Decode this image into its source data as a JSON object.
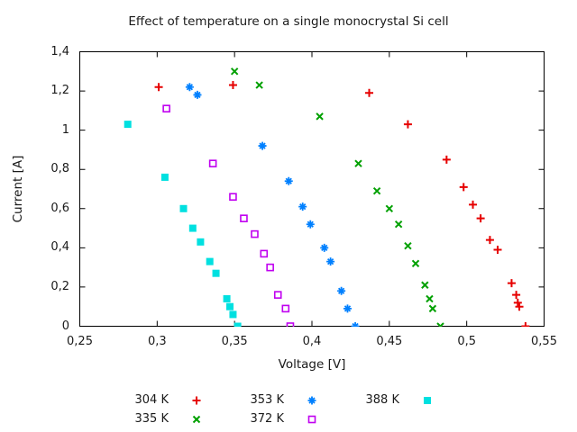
{
  "chart_data": {
    "type": "scatter",
    "title": "Effect of temperature on a single monocrystal Si cell",
    "xlabel": "Voltage [V]",
    "ylabel": "Current [A]",
    "xlim": [
      0.25,
      0.55
    ],
    "ylim": [
      0,
      1.4
    ],
    "grid": false,
    "decimal_separator": ",",
    "legend_position": "below plot, centered, 3 columns x 2 rows",
    "axis_color": "#000000",
    "text_color": "#1a1a1a",
    "x_ticks": {
      "values": [
        0.25,
        0.3,
        0.35,
        0.4,
        0.45,
        0.5,
        0.55
      ],
      "labels": [
        "0,25",
        "0,3",
        "0,35",
        "0,4",
        "0,45",
        "0,5",
        "0,55"
      ]
    },
    "y_ticks": {
      "values": [
        0,
        0.2,
        0.4,
        0.6,
        0.8,
        1.0,
        1.2,
        1.4
      ],
      "labels": [
        "0",
        "0,2",
        "0,4",
        "0,6",
        "0,8",
        "1",
        "1,2",
        "1,4"
      ]
    },
    "series": [
      {
        "name": "304 K",
        "marker": "plus",
        "color": "#e60000",
        "points": [
          [
            0.301,
            1.22
          ],
          [
            0.349,
            1.23
          ],
          [
            0.437,
            1.19
          ],
          [
            0.462,
            1.03
          ],
          [
            0.487,
            0.85
          ],
          [
            0.498,
            0.71
          ],
          [
            0.504,
            0.62
          ],
          [
            0.509,
            0.55
          ],
          [
            0.515,
            0.44
          ],
          [
            0.52,
            0.39
          ],
          [
            0.529,
            0.22
          ],
          [
            0.532,
            0.16
          ],
          [
            0.533,
            0.12
          ],
          [
            0.534,
            0.1
          ],
          [
            0.538,
            0.0
          ]
        ]
      },
      {
        "name": "335 K",
        "marker": "cross",
        "color": "#00a000",
        "points": [
          [
            0.35,
            1.3
          ],
          [
            0.366,
            1.23
          ],
          [
            0.405,
            1.07
          ],
          [
            0.43,
            0.83
          ],
          [
            0.442,
            0.69
          ],
          [
            0.45,
            0.6
          ],
          [
            0.456,
            0.52
          ],
          [
            0.462,
            0.41
          ],
          [
            0.467,
            0.32
          ],
          [
            0.473,
            0.21
          ],
          [
            0.476,
            0.14
          ],
          [
            0.478,
            0.09
          ],
          [
            0.483,
            0.0
          ]
        ]
      },
      {
        "name": "353 K",
        "marker": "star",
        "color": "#0080ff",
        "points": [
          [
            0.321,
            1.22
          ],
          [
            0.326,
            1.18
          ],
          [
            0.368,
            0.92
          ],
          [
            0.385,
            0.74
          ],
          [
            0.394,
            0.61
          ],
          [
            0.399,
            0.52
          ],
          [
            0.408,
            0.4
          ],
          [
            0.412,
            0.33
          ],
          [
            0.419,
            0.18
          ],
          [
            0.423,
            0.09
          ],
          [
            0.428,
            0.0
          ]
        ]
      },
      {
        "name": "372 K",
        "marker": "open-square",
        "color": "#c000f0",
        "points": [
          [
            0.306,
            1.11
          ],
          [
            0.336,
            0.83
          ],
          [
            0.349,
            0.66
          ],
          [
            0.356,
            0.55
          ],
          [
            0.363,
            0.47
          ],
          [
            0.369,
            0.37
          ],
          [
            0.373,
            0.3
          ],
          [
            0.378,
            0.16
          ],
          [
            0.383,
            0.09
          ],
          [
            0.386,
            0.0
          ]
        ]
      },
      {
        "name": "388 K",
        "marker": "filled-square",
        "color": "#00e0e0",
        "points": [
          [
            0.281,
            1.03
          ],
          [
            0.305,
            0.76
          ],
          [
            0.317,
            0.6
          ],
          [
            0.323,
            0.5
          ],
          [
            0.328,
            0.43
          ],
          [
            0.334,
            0.33
          ],
          [
            0.338,
            0.27
          ],
          [
            0.345,
            0.14
          ],
          [
            0.347,
            0.1
          ],
          [
            0.349,
            0.06
          ],
          [
            0.352,
            0.0
          ]
        ]
      }
    ]
  }
}
